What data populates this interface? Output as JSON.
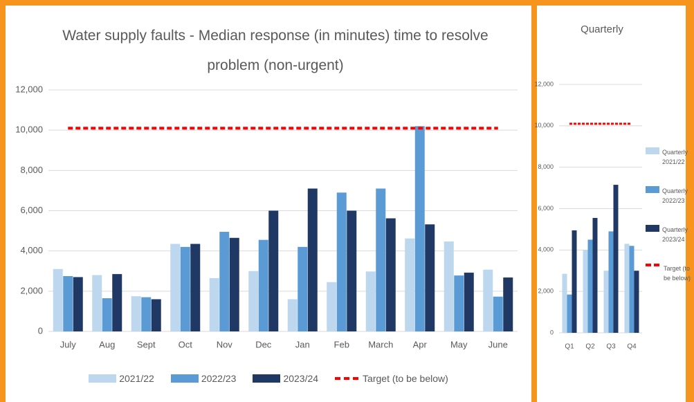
{
  "chart_data": [
    {
      "type": "bar",
      "title": "Water supply faults - Median response (in minutes) time to resolve problem (non-urgent)",
      "categories": [
        "July",
        "Aug",
        "Sept",
        "Oct",
        "Nov",
        "Dec",
        "Jan",
        "Feb",
        "March",
        "Apr",
        "May",
        "June"
      ],
      "series": [
        {
          "name": "2021/22",
          "color": "#bdd7ee",
          "values": [
            3100,
            2800,
            1750,
            4350,
            2650,
            3000,
            1600,
            2450,
            2980,
            4620,
            4470,
            3070
          ]
        },
        {
          "name": "2022/23",
          "color": "#5b9bd5",
          "values": [
            2750,
            1650,
            1700,
            4200,
            4950,
            4550,
            4200,
            6900,
            7100,
            10200,
            2780,
            1730
          ]
        },
        {
          "name": "2023/24",
          "color": "#203864",
          "values": [
            2700,
            2850,
            1600,
            4350,
            4650,
            6000,
            7100,
            6000,
            5620,
            5320,
            2920,
            2680
          ]
        },
        {
          "name": "Target (to be below)",
          "color": "#ff0000",
          "type": "line",
          "dashed": true,
          "values": [
            10100,
            10100,
            10100,
            10100,
            10100,
            10100,
            10100,
            10100,
            10100,
            10100,
            10100,
            10100
          ]
        }
      ],
      "ylim": [
        0,
        12000
      ],
      "yticks": [
        0,
        {
          "value": 2000,
          "label": "2,000"
        },
        {
          "value": 4000,
          "label": "4,000"
        },
        {
          "value": 6000,
          "label": "6,000"
        },
        {
          "value": 8000,
          "label": "8,000"
        },
        {
          "value": 10000,
          "label": "10,000"
        },
        {
          "value": 12000,
          "label": "12,000"
        }
      ],
      "grid": true,
      "legend": "bottom"
    },
    {
      "type": "bar",
      "title": "Quarterly",
      "categories": [
        "Q1",
        "Q2",
        "Q3",
        "Q4"
      ],
      "series": [
        {
          "name": "Quarterly 2021/22",
          "color": "#bdd7ee",
          "values": [
            2850,
            4000,
            3000,
            4300
          ]
        },
        {
          "name": "Quarterly 2022/23",
          "color": "#5b9bd5",
          "values": [
            1850,
            4500,
            4900,
            4200
          ]
        },
        {
          "name": "Quarterly 2023/24",
          "color": "#203864",
          "values": [
            4950,
            5550,
            7150,
            3000
          ]
        },
        {
          "name": "Target (to be below)",
          "color": "#ff0000",
          "type": "line",
          "dashed": true,
          "values": [
            10100,
            10100,
            10100,
            10100
          ]
        }
      ],
      "ylim": [
        0,
        12000
      ],
      "yticks": [
        0,
        {
          "value": 2000,
          "label": "2,000"
        },
        {
          "value": 4000,
          "label": "4,000"
        },
        {
          "value": 6000,
          "label": "6,000"
        },
        {
          "value": 8000,
          "label": "8,000"
        },
        {
          "value": 10000,
          "label": "10,000"
        },
        {
          "value": 12000,
          "label": "12,000"
        }
      ],
      "grid": true,
      "legend": "right"
    }
  ]
}
